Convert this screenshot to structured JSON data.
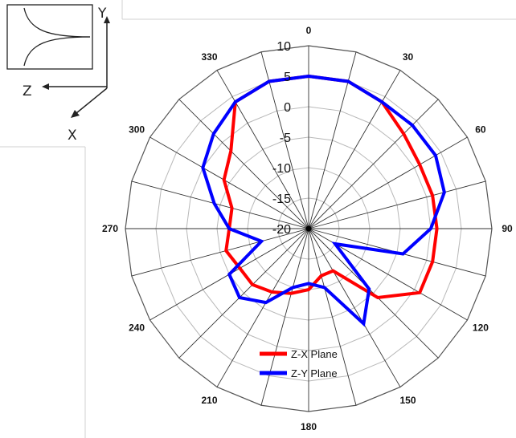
{
  "chart_data": {
    "type": "polar-line",
    "angle_ticks": [
      "0",
      "30",
      "60",
      "90",
      "120",
      "150",
      "180",
      "210",
      "240",
      "270",
      "300",
      "330"
    ],
    "radial_ticks": [
      "10",
      "5",
      "0",
      "-5",
      "-10",
      "-15",
      "-20"
    ],
    "rlim": [
      -20,
      10
    ],
    "angle_step_deg": 15,
    "grid": true,
    "legend": "bottom-center",
    "series": [
      {
        "name": "Z-X Plane",
        "color": "#ff0000",
        "angles_deg": [
          0,
          15,
          30,
          45,
          60,
          75,
          90,
          105,
          120,
          135,
          150,
          165,
          180,
          195,
          210,
          225,
          240,
          255,
          270,
          285,
          300,
          315,
          330,
          345
        ],
        "values": [
          5,
          5,
          4,
          2,
          1,
          1,
          1,
          1,
          1,
          -4,
          -12,
          -12,
          -10,
          -9,
          -8,
          -7,
          -7,
          -6,
          -7,
          -7,
          -4,
          -2,
          4,
          5
        ]
      },
      {
        "name": "Z-Y Plane",
        "color": "#0000ff",
        "angles_deg": [
          0,
          15,
          30,
          45,
          60,
          75,
          90,
          105,
          120,
          135,
          150,
          165,
          180,
          195,
          210,
          225,
          240,
          255,
          270,
          285,
          300,
          315,
          330,
          345
        ],
        "values": [
          5,
          5,
          4,
          4,
          4,
          3,
          0,
          -4,
          -15,
          -6,
          -2,
          -10,
          -11,
          -10,
          -6,
          -4,
          -5,
          -12,
          -7,
          -4,
          0,
          2,
          4,
          5
        ]
      }
    ]
  },
  "inset": {
    "y_label": "Y",
    "z_label": "Z",
    "x_label": "X"
  }
}
